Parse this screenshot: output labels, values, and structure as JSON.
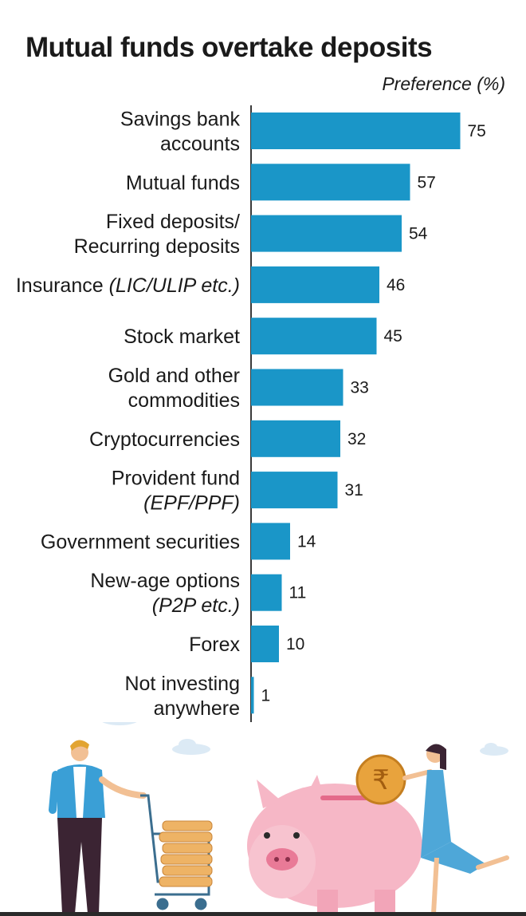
{
  "chart_data": {
    "type": "bar",
    "orientation": "horizontal",
    "title": "Mutual funds overtake deposits",
    "unit_label": "Preference (%)",
    "categories": [
      {
        "lines": [
          {
            "text": "Savings bank"
          },
          {
            "text": "accounts"
          }
        ]
      },
      {
        "lines": [
          {
            "text": "Mutual funds"
          }
        ]
      },
      {
        "lines": [
          {
            "text": "Fixed deposits/"
          },
          {
            "text": "Recurring deposits"
          }
        ]
      },
      {
        "lines": [
          {
            "text": "Insurance ",
            "italic": "(LIC/ULIP etc.)"
          }
        ]
      },
      {
        "lines": [
          {
            "text": "Stock market"
          }
        ]
      },
      {
        "lines": [
          {
            "text": "Gold and other"
          },
          {
            "text": "commodities"
          }
        ]
      },
      {
        "lines": [
          {
            "text": "Cryptocurrencies"
          }
        ]
      },
      {
        "lines": [
          {
            "text": "Provident fund"
          },
          {
            "text": "",
            "italic": "(EPF/PPF)"
          }
        ]
      },
      {
        "lines": [
          {
            "text": "Government securities"
          }
        ]
      },
      {
        "lines": [
          {
            "text": "New-age options"
          },
          {
            "text": "",
            "italic": "(P2P etc.)"
          }
        ]
      },
      {
        "lines": [
          {
            "text": "Forex"
          }
        ]
      },
      {
        "lines": [
          {
            "text": "Not investing"
          },
          {
            "text": "anywhere"
          }
        ]
      }
    ],
    "values": [
      75,
      57,
      54,
      46,
      45,
      33,
      32,
      31,
      14,
      11,
      10,
      1
    ],
    "bar_color": "#1a96c8",
    "grid": false
  },
  "illustration": {
    "icons": [
      "man-with-cart-icon",
      "coin-stack-icon",
      "piggy-bank-icon",
      "woman-with-rupee-coin-icon",
      "cloud-icon"
    ],
    "coin_symbol": "₹",
    "colors": {
      "pig": "#f6b7c6",
      "coin": "#e8a33d",
      "shirt": "#3a9fd6",
      "dress": "#4ea7d8",
      "cloud": "#dceaf5"
    }
  }
}
